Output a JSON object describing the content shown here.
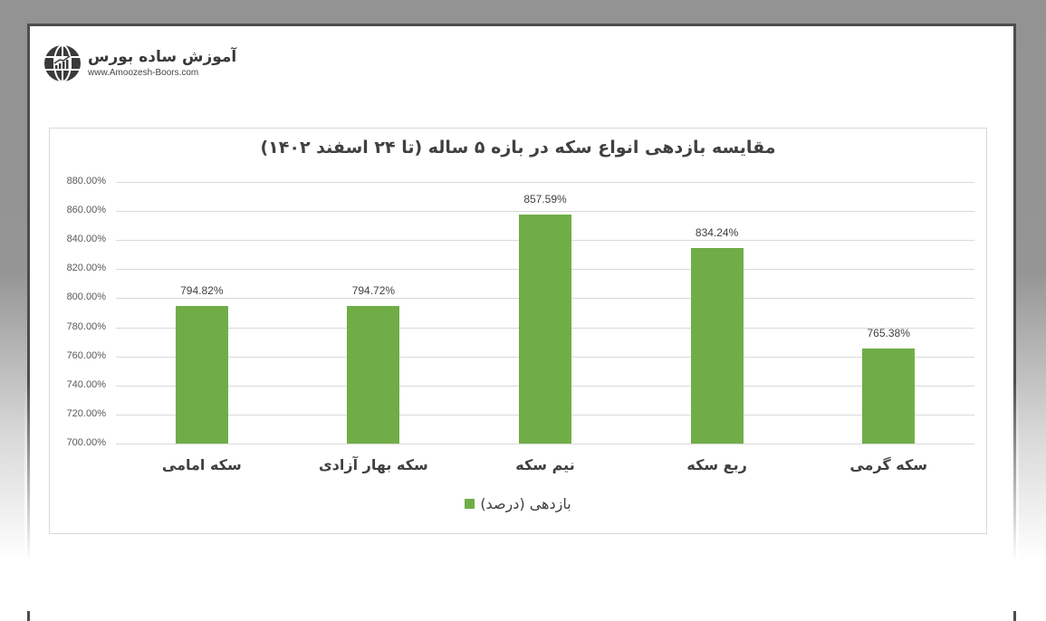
{
  "logo": {
    "name_fa": "آموزش ساده بورس",
    "url": "www.Amoozesh-Boors.com",
    "icon": "globe-chart-icon"
  },
  "colors": {
    "bar": "#70ad47",
    "grid": "#d9d9d9",
    "text": "#404040",
    "frame": "#4d4d4d"
  },
  "chart_data": {
    "type": "bar",
    "title": "مقایسه بازدهی انواع سکه در بازه ۵ ساله (تا ۲۴ اسفند ۱۴۰۲)",
    "categories": [
      "سکه امامی",
      "سکه بهار آزادی",
      "نیم سکه",
      "ربع سکه",
      "سکه گرمی"
    ],
    "series": [
      {
        "name": "بازدهی (درصد)",
        "values": [
          794.82,
          794.72,
          857.59,
          834.24,
          765.38
        ]
      }
    ],
    "value_labels": [
      "794.82%",
      "794.72%",
      "857.59%",
      "834.24%",
      "765.38%"
    ],
    "xlabel": "",
    "ylabel": "",
    "ylim": [
      700,
      880
    ],
    "yticks": [
      "880.00%",
      "860.00%",
      "840.00%",
      "820.00%",
      "800.00%",
      "780.00%",
      "760.00%",
      "740.00%",
      "720.00%",
      "700.00%"
    ],
    "grid": true,
    "legend_position": "bottom"
  }
}
